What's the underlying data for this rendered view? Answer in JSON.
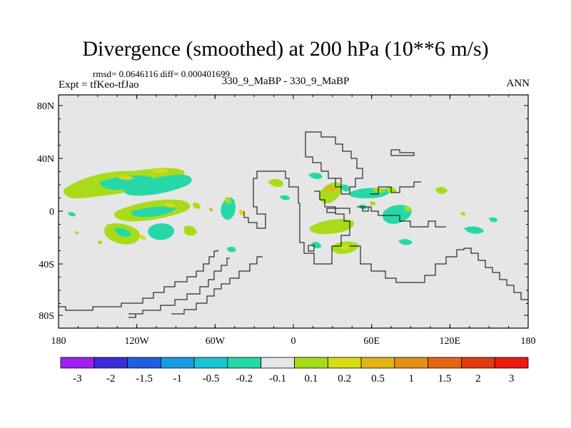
{
  "title": "Divergence (smoothed) at 200 hPa (10**6 m/s)",
  "rmsd_label": "rmsd= 0.0646116 diff= 0.000401699",
  "expt_label": "Expt = tfKeo-tfJao",
  "case_label": "330_9_MaBP - 330_9_MaBP",
  "season_label": "ANN",
  "map": {
    "lat_ticks": [
      "80N",
      "40N",
      "0",
      "40S",
      "80S"
    ],
    "lon_ticks": [
      "180",
      "120W",
      "60W",
      "0",
      "60E",
      "120E",
      "180"
    ],
    "background_color": "#e6e6e6"
  },
  "colorbar": {
    "labels": [
      "-3",
      "-2",
      "-1.5",
      "-1",
      "-0.5",
      "-0.2",
      "-0.1",
      "0.1",
      "0.2",
      "0.5",
      "1",
      "1.5",
      "2",
      "3"
    ],
    "colors": [
      "#a020f0",
      "#3b2bd6",
      "#1e5ee0",
      "#1b9ae0",
      "#17c5d2",
      "#26d8a8",
      "#e6e6e6",
      "#a8dc1a",
      "#d7dc16",
      "#e0b515",
      "#e48f15",
      "#e36615",
      "#df3a12",
      "#e81c10"
    ]
  }
}
